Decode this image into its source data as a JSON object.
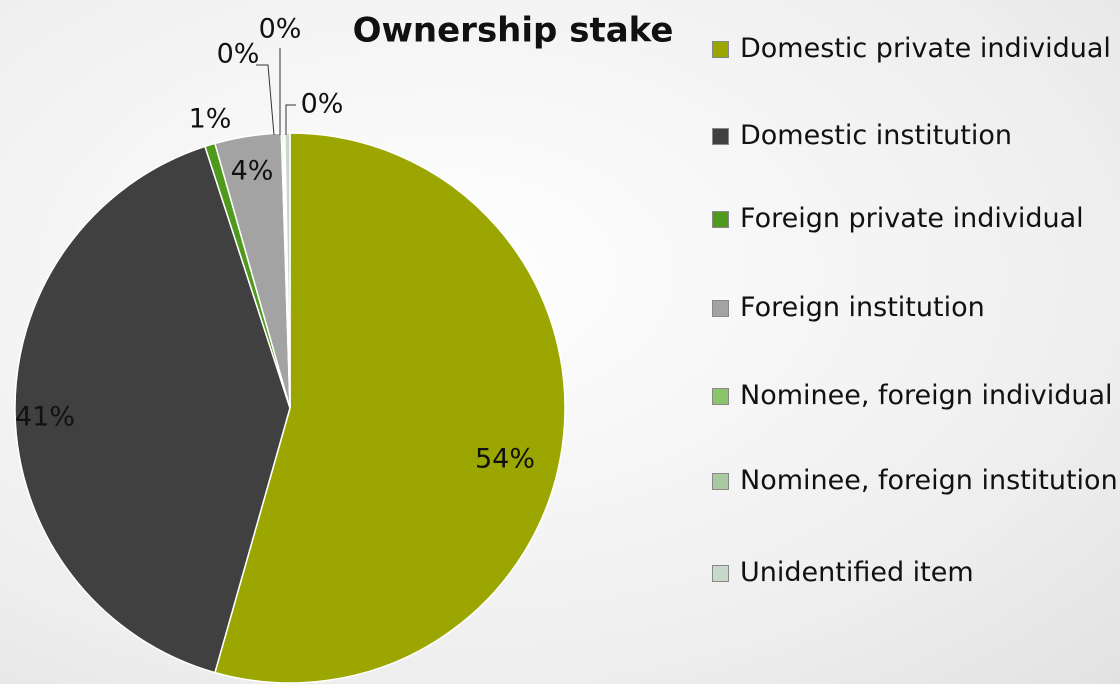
{
  "chart_data": {
    "type": "pie",
    "title": "Ownership stake",
    "categories": [
      "Domestic private individual",
      "Domestic institution",
      "Foreign private individual",
      "Foreign institution",
      "Nominee, foreign individual",
      "Nominee, foreign institution",
      "Unidentified item"
    ],
    "values": [
      54.4,
      40.6,
      0.6,
      3.9,
      0.1,
      0.1,
      0.3
    ],
    "value_labels": [
      "54%",
      "41%",
      "1%",
      "4%",
      "0%",
      "0%",
      "0%"
    ],
    "colors": [
      "#9ba600",
      "#404040",
      "#4f9a1c",
      "#a3a3a3",
      "#8cc46a",
      "#a9c9a0",
      "#c9d9c9"
    ],
    "legend": "right"
  }
}
